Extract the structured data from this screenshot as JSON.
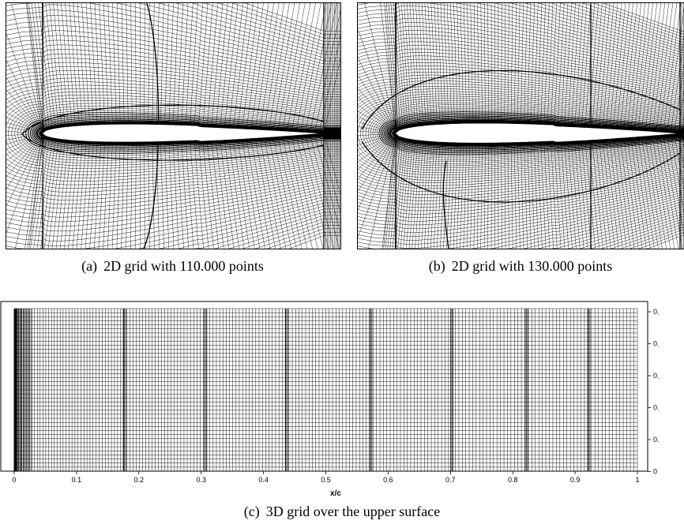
{
  "figure": {
    "panel_a": {
      "tag": "(a)",
      "caption": "2D grid with 110.000 points"
    },
    "panel_b": {
      "tag": "(b)",
      "caption": "2D grid with 130.000 points"
    },
    "panel_c": {
      "tag": "(c)",
      "caption": "3D grid over the upper surface",
      "xlabel": "x/c",
      "x_ticks": [
        "0",
        "0.1",
        "0.2",
        "0.3",
        "0.4",
        "0.5",
        "0.6",
        "0.7",
        "0.8",
        "0.9",
        "1"
      ],
      "right_ticks": [
        "0.",
        "0.",
        "0.",
        "0.",
        "0.",
        "0"
      ]
    }
  },
  "colors": {
    "mesh": "#000000",
    "background": "#ffffff"
  }
}
